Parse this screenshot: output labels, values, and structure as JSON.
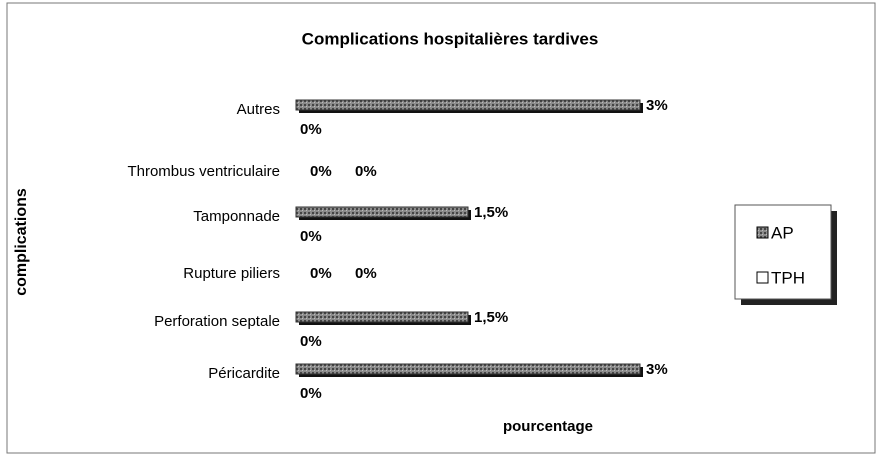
{
  "chart_data": {
    "type": "bar",
    "orientation": "horizontal",
    "title": "Complications hospitalières tardives",
    "y_label": "complications",
    "x_label": "pourcentage",
    "categories": [
      "Autres",
      "Thrombus ventriculaire",
      "Tamponnade",
      "Rupture piliers",
      "Perforation septale",
      "Péricardite"
    ],
    "series": [
      {
        "name": "AP",
        "color": "#555555",
        "values": [
          3,
          0,
          1.5,
          0,
          1.5,
          3
        ],
        "value_labels": [
          "3%",
          "0%",
          "1,5%",
          "0%",
          "1,5%",
          "3%"
        ]
      },
      {
        "name": "TPH",
        "color": "#ffffff",
        "values": [
          0,
          0,
          0,
          0,
          0,
          0
        ],
        "value_labels": [
          "0%",
          "0%",
          "0%",
          "0%",
          "0%",
          "0%"
        ]
      }
    ],
    "xlim": [
      0,
      3
    ],
    "legend": "right"
  }
}
